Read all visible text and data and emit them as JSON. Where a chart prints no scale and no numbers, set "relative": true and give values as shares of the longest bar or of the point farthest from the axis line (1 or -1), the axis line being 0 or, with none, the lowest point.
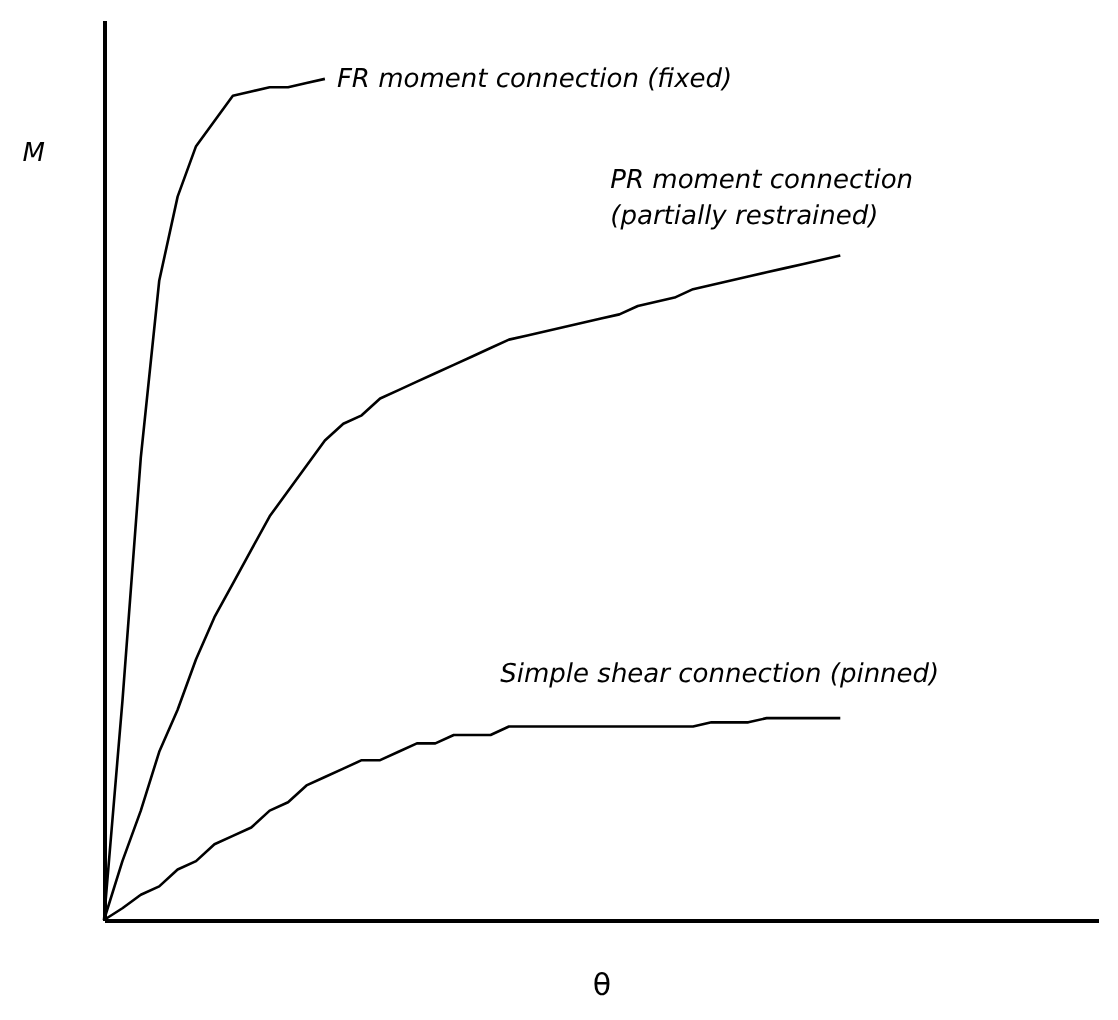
{
  "chart_data": {
    "type": "line",
    "relative": true,
    "xlabel": "θ",
    "ylabel": "M",
    "grid": false,
    "tick_labels": false,
    "marker": "none",
    "line_style": "solid",
    "categories": [
      null,
      null,
      null,
      null,
      null,
      null,
      null,
      null,
      null,
      null,
      null,
      null,
      null,
      null,
      null,
      null,
      null,
      null,
      null,
      null,
      null,
      null,
      null,
      null,
      null,
      null,
      null,
      null,
      null,
      null,
      null,
      null,
      null,
      null,
      null,
      null,
      null,
      null,
      null,
      null,
      null,
      null,
      null,
      null,
      null,
      null,
      null,
      null,
      null,
      null,
      null,
      null,
      null,
      null,
      null
    ],
    "series": [
      {
        "name": "FR moment connection (fixed)",
        "color": "#000000",
        "values": [
          0,
          0.26,
          0.55,
          0.76,
          0.86,
          0.92,
          0.95,
          0.98,
          0.985,
          0.99,
          0.99,
          0.995,
          1,
          null,
          null,
          null,
          null,
          null,
          null,
          null,
          null,
          null,
          null,
          null,
          null,
          null,
          null,
          null,
          null,
          null,
          null,
          null,
          null,
          null,
          null,
          null,
          null,
          null,
          null,
          null,
          null,
          null,
          null,
          null,
          null,
          null,
          null,
          null,
          null,
          null,
          null,
          null,
          null,
          null,
          null
        ]
      },
      {
        "name": "PR moment connection\n(partially restrained)",
        "color": "#000000",
        "values": [
          0,
          0.07,
          0.13,
          0.2,
          0.25,
          0.31,
          0.36,
          0.4,
          0.44,
          0.48,
          0.51,
          0.54,
          0.57,
          0.59,
          0.6,
          0.62,
          0.63,
          0.64,
          0.65,
          0.66,
          0.67,
          0.68,
          0.69,
          0.695,
          0.7,
          0.705,
          0.71,
          0.715,
          0.72,
          0.73,
          0.735,
          0.74,
          0.75,
          0.755,
          0.76,
          0.765,
          0.77,
          0.775,
          0.78,
          0.785,
          0.79,
          null,
          null,
          null,
          null,
          null,
          null,
          null,
          null,
          null,
          null,
          null,
          null,
          null,
          null
        ]
      },
      {
        "name": "Simple shear connection (pinned)",
        "color": "#000000",
        "values": [
          0,
          0.014,
          0.03,
          0.04,
          0.06,
          0.07,
          0.09,
          0.1,
          0.11,
          0.13,
          0.14,
          0.16,
          0.17,
          0.18,
          0.19,
          0.19,
          0.2,
          0.21,
          0.21,
          0.22,
          0.22,
          0.22,
          0.23,
          0.23,
          0.23,
          0.23,
          0.23,
          0.23,
          0.23,
          0.23,
          0.23,
          0.23,
          0.23,
          0.235,
          0.235,
          0.235,
          0.24,
          0.24,
          0.24,
          0.24,
          0.24,
          null,
          null,
          null,
          null,
          null,
          null,
          null,
          null,
          null,
          null,
          null,
          null,
          null,
          null
        ]
      }
    ]
  }
}
